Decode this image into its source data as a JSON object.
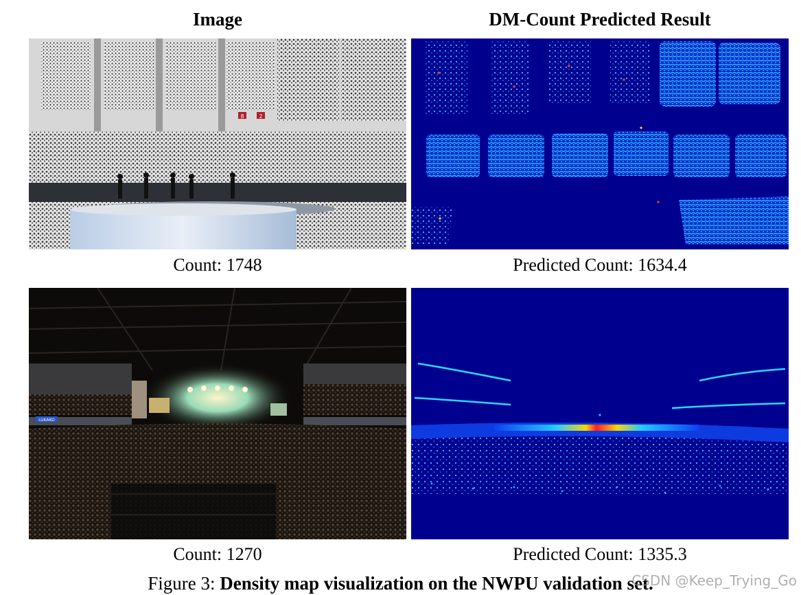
{
  "columns": {
    "left_title": "Image",
    "right_title": "DM-Count Predicted Result"
  },
  "rows": [
    {
      "count_label": "Count: 1748",
      "predicted_label": "Predicted Count: 1634.4"
    },
    {
      "count_label": "Count: 1270",
      "predicted_label": "Predicted Count: 1335.3"
    }
  ],
  "caption": {
    "prefix": "Figure 3: ",
    "text": "Density map visualization on the NWPU validation set."
  },
  "watermark": "CSDN @Keep_Trying_Go",
  "photo1": {
    "stage_sign_left": "8",
    "stage_sign_right": "2"
  },
  "photo2": {
    "banner_left": "LUKAKO"
  },
  "colors": {
    "density_background": "#00008f",
    "density_low": "#00bfff",
    "density_high": "#ff2020",
    "stadium_seats": "#bdbdbd",
    "night_arena": "#0d0b09"
  }
}
